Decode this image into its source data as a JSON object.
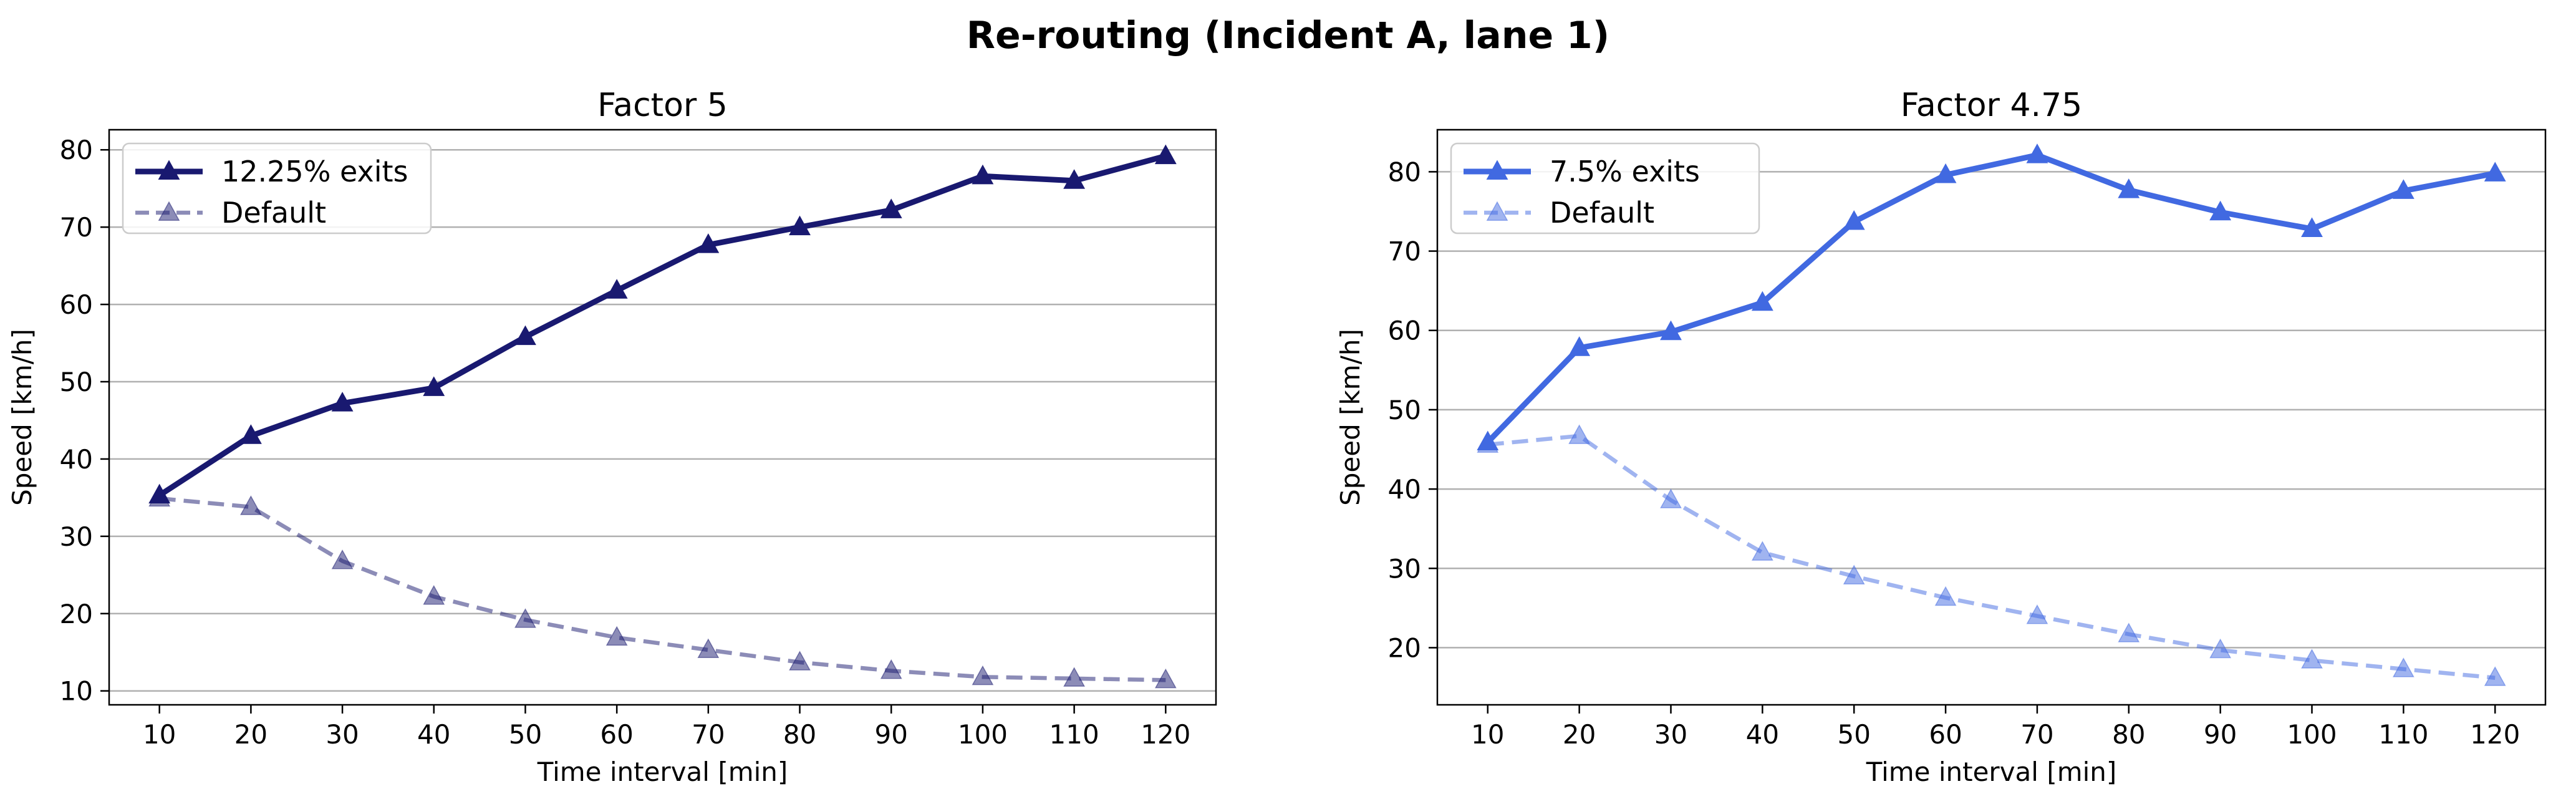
{
  "figure": {
    "title": "Re-routing (Incident A, lane 1)"
  },
  "chart_data": [
    {
      "type": "line",
      "title": "Factor 5",
      "xlabel": "Time interval [min]",
      "ylabel": "Speed [km/h]",
      "x": [
        10,
        20,
        30,
        40,
        50,
        60,
        70,
        80,
        90,
        100,
        110,
        120
      ],
      "xticks": [
        "10",
        "20",
        "30",
        "40",
        "50",
        "60",
        "70",
        "80",
        "90",
        "100",
        "110",
        "120"
      ],
      "yticks": [
        "10",
        "20",
        "30",
        "40",
        "50",
        "60",
        "70",
        "80"
      ],
      "xlim": [
        4.5,
        125.5
      ],
      "ylim": [
        8.2,
        82.6
      ],
      "grid": "horizontal",
      "legend_position": "top-left",
      "series": [
        {
          "name": "12.25% exits",
          "color": "#191970",
          "style": "solid",
          "marker": "triangle",
          "values": [
            35.3,
            43.0,
            47.2,
            49.2,
            55.8,
            61.8,
            67.7,
            70.0,
            72.2,
            76.6,
            76.0,
            79.2
          ]
        },
        {
          "name": "Default",
          "color": "#191970",
          "alpha": 0.5,
          "style": "dashed",
          "marker": "triangle",
          "values": [
            34.9,
            33.8,
            26.8,
            22.2,
            19.2,
            16.9,
            15.3,
            13.7,
            12.6,
            11.8,
            11.6,
            11.4
          ]
        }
      ]
    },
    {
      "type": "line",
      "title": "Factor 4.75",
      "xlabel": "Time interval [min]",
      "ylabel": "Speed [km/h]",
      "x": [
        10,
        20,
        30,
        40,
        50,
        60,
        70,
        80,
        90,
        100,
        110,
        120
      ],
      "xticks": [
        "10",
        "20",
        "30",
        "40",
        "50",
        "60",
        "70",
        "80",
        "90",
        "100",
        "110",
        "120"
      ],
      "yticks": [
        "20",
        "30",
        "40",
        "50",
        "60",
        "70",
        "80"
      ],
      "xlim": [
        4.5,
        125.5
      ],
      "ylim": [
        12.8,
        85.3
      ],
      "grid": "horizontal",
      "legend_position": "top-left",
      "series": [
        {
          "name": "7.5% exits",
          "color": "#4169e1",
          "style": "solid",
          "marker": "triangle",
          "values": [
            45.9,
            57.8,
            59.8,
            63.5,
            73.7,
            79.6,
            82.1,
            77.7,
            74.9,
            72.8,
            77.6,
            79.8
          ]
        },
        {
          "name": "Default",
          "color": "#4169e1",
          "alpha": 0.5,
          "style": "dashed",
          "marker": "triangle",
          "values": [
            45.6,
            46.7,
            38.6,
            32.0,
            29.0,
            26.3,
            24.0,
            21.7,
            19.7,
            18.4,
            17.3,
            16.2
          ]
        }
      ]
    }
  ]
}
